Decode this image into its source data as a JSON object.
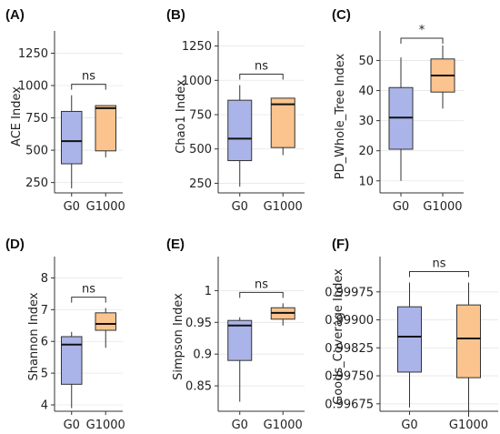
{
  "colors": {
    "G0": "#aab4e8",
    "G1000": "#fbc38e",
    "axis": "#333333",
    "grid": "#e6e6e6"
  },
  "chart_data": [
    {
      "type": "box",
      "panel": "(A)",
      "ylabel": "ACE Index",
      "categories": [
        "G0",
        "G1000"
      ],
      "ylim": [
        170,
        1380
      ],
      "yticks": [
        250,
        500,
        750,
        1000,
        1250
      ],
      "boxes": [
        {
          "name": "G0",
          "min": 205,
          "q1": 395,
          "median": 570,
          "q3": 800,
          "max": 925
        },
        {
          "name": "G1000",
          "min": 445,
          "q1": 495,
          "median": 825,
          "q3": 845,
          "max": 845
        }
      ],
      "significance": "ns",
      "grid": true
    },
    {
      "type": "box",
      "panel": "(B)",
      "ylabel": "Chao1 Index",
      "categories": [
        "G0",
        "G1000"
      ],
      "ylim": [
        180,
        1320
      ],
      "yticks": [
        250,
        500,
        750,
        1000,
        1250
      ],
      "boxes": [
        {
          "name": "G0",
          "min": 225,
          "q1": 415,
          "median": 575,
          "q3": 855,
          "max": 965
        },
        {
          "name": "G1000",
          "min": 455,
          "q1": 510,
          "median": 825,
          "q3": 870,
          "max": 870
        }
      ],
      "significance": "ns",
      "grid": true
    },
    {
      "type": "box",
      "panel": "(C)",
      "ylabel": "PD_Whole_Tree Index",
      "categories": [
        "G0",
        "G1000"
      ],
      "ylim": [
        6,
        58
      ],
      "yticks": [
        10,
        20,
        30,
        40,
        50
      ],
      "boxes": [
        {
          "name": "G0",
          "min": 10,
          "q1": 20.5,
          "median": 31,
          "q3": 41,
          "max": 51
        },
        {
          "name": "G1000",
          "min": 34,
          "q1": 39.5,
          "median": 45,
          "q3": 50.5,
          "max": 55
        }
      ],
      "significance": "*",
      "grid": true
    },
    {
      "type": "box",
      "panel": "(D)",
      "ylabel": "Shannon Index",
      "categories": [
        "G0",
        "G1000"
      ],
      "ylim": [
        3.8,
        8.5
      ],
      "yticks": [
        4,
        5,
        6,
        7,
        8
      ],
      "boxes": [
        {
          "name": "G0",
          "min": 3.9,
          "q1": 4.65,
          "median": 5.9,
          "q3": 6.15,
          "max": 6.3
        },
        {
          "name": "G1000",
          "min": 5.8,
          "q1": 6.35,
          "median": 6.55,
          "q3": 6.9,
          "max": 7.05
        }
      ],
      "significance": "ns",
      "grid": true
    },
    {
      "type": "box",
      "panel": "(E)",
      "ylabel": "Simpson Index",
      "categories": [
        "G0",
        "G1000"
      ],
      "ylim": [
        0.81,
        1.045
      ],
      "yticks": [
        0.85,
        0.9,
        0.95,
        1.0
      ],
      "boxes": [
        {
          "name": "G0",
          "min": 0.825,
          "q1": 0.89,
          "median": 0.945,
          "q3": 0.953,
          "max": 0.958
        },
        {
          "name": "G1000",
          "min": 0.945,
          "q1": 0.955,
          "median": 0.965,
          "q3": 0.973,
          "max": 0.98
        }
      ],
      "significance": "ns",
      "grid": true
    },
    {
      "type": "box",
      "panel": "(F)",
      "ylabel": "Goods_Coverage Index",
      "categories": [
        "G0",
        "G1000"
      ],
      "ylim": [
        0.99655,
        1.00055
      ],
      "yticks": [
        0.99675,
        0.9975,
        0.99825,
        0.999,
        0.99975
      ],
      "ytick_labels": [
        "0.99675",
        "0.99750",
        "0.99825",
        "0.99900",
        "0.99975"
      ],
      "boxes": [
        {
          "name": "G0",
          "min": 0.99665,
          "q1": 0.9976,
          "median": 0.99855,
          "q3": 0.99935,
          "max": 1.0
        },
        {
          "name": "G1000",
          "min": 0.9964,
          "q1": 0.99745,
          "median": 0.9985,
          "q3": 0.9994,
          "max": 1.0
        }
      ],
      "significance": "ns",
      "grid": true
    }
  ]
}
